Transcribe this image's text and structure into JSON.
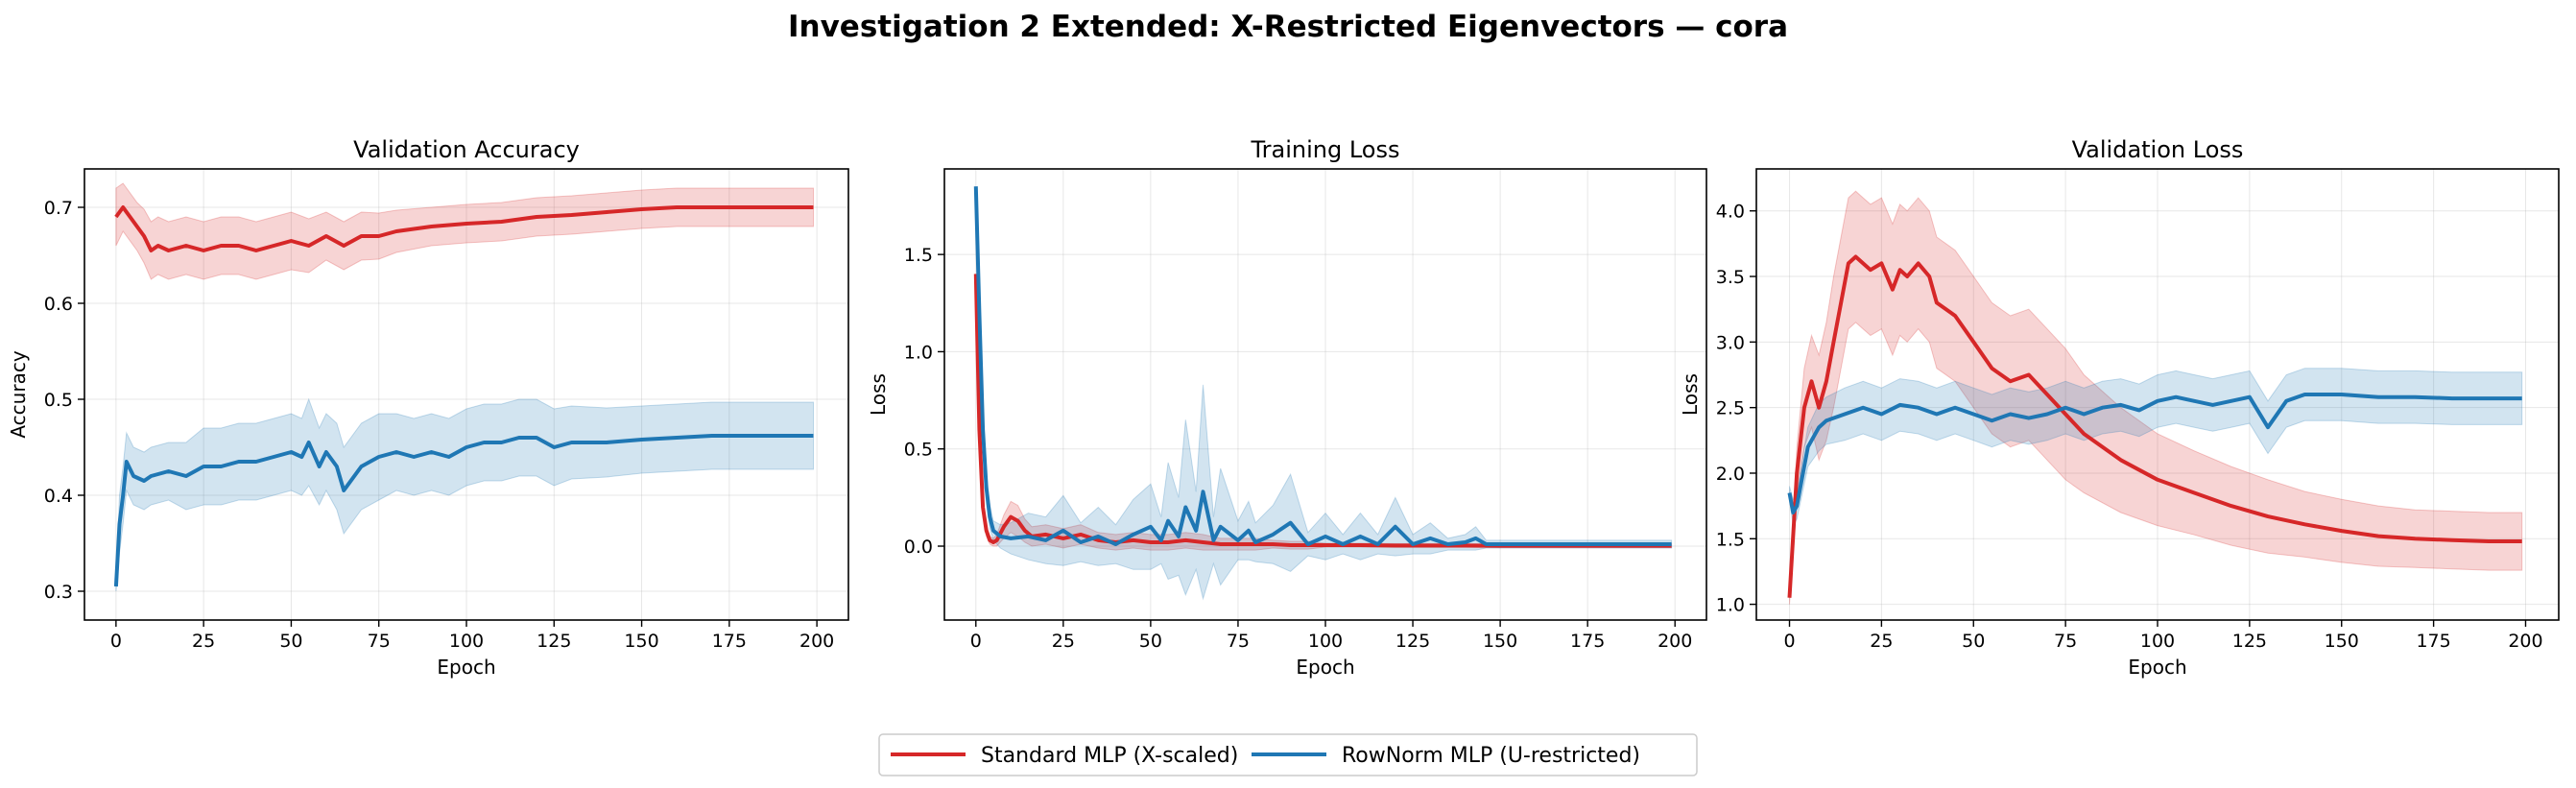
{
  "figure_title": "Investigation 2 Extended: X-Restricted Eigenvectors — cora",
  "colors": {
    "standard": "#d62728",
    "rownorm": "#1f77b4"
  },
  "legend": {
    "placement": "bottom-center",
    "entries": [
      {
        "label": "Standard MLP (X-scaled)",
        "color": "#d62728"
      },
      {
        "label": "RowNorm MLP (U-restricted)",
        "color": "#1f77b4"
      }
    ]
  },
  "chart_data": [
    {
      "type": "line",
      "title": "Validation Accuracy",
      "xlabel": "Epoch",
      "ylabel": "Accuracy",
      "xlim": [
        -9,
        209
      ],
      "ylim": [
        0.27,
        0.74
      ],
      "xticks": [
        0,
        25,
        50,
        75,
        100,
        125,
        150,
        175,
        200
      ],
      "yticks": [
        0.3,
        0.4,
        0.5,
        0.6,
        0.7
      ],
      "ytick_labels": [
        "0.3",
        "0.4",
        "0.5",
        "0.6",
        "0.7"
      ],
      "grid": true,
      "series": [
        {
          "name": "Standard MLP (X-scaled)",
          "color": "#d62728",
          "x": [
            0,
            2,
            4,
            6,
            8,
            10,
            12,
            15,
            20,
            25,
            30,
            35,
            40,
            45,
            50,
            55,
            60,
            65,
            70,
            75,
            80,
            90,
            100,
            110,
            120,
            130,
            140,
            150,
            160,
            170,
            180,
            190,
            199
          ],
          "y": [
            0.69,
            0.7,
            0.69,
            0.68,
            0.67,
            0.655,
            0.66,
            0.655,
            0.66,
            0.655,
            0.66,
            0.66,
            0.655,
            0.66,
            0.665,
            0.66,
            0.67,
            0.66,
            0.67,
            0.67,
            0.675,
            0.68,
            0.683,
            0.685,
            0.69,
            0.692,
            0.695,
            0.698,
            0.7,
            0.7,
            0.7,
            0.7,
            0.7
          ],
          "band": [
            0.03,
            0.025,
            0.025,
            0.025,
            0.028,
            0.03,
            0.03,
            0.03,
            0.03,
            0.03,
            0.03,
            0.03,
            0.03,
            0.03,
            0.03,
            0.028,
            0.025,
            0.025,
            0.025,
            0.024,
            0.022,
            0.02,
            0.02,
            0.02,
            0.02,
            0.02,
            0.02,
            0.02,
            0.02,
            0.02,
            0.02,
            0.02,
            0.02
          ]
        },
        {
          "name": "RowNorm MLP (U-restricted)",
          "color": "#1f77b4",
          "x": [
            0,
            1,
            2,
            3,
            5,
            8,
            10,
            15,
            20,
            25,
            30,
            35,
            40,
            45,
            50,
            53,
            55,
            58,
            60,
            63,
            65,
            70,
            75,
            80,
            85,
            90,
            95,
            100,
            105,
            110,
            115,
            120,
            125,
            130,
            140,
            150,
            160,
            170,
            180,
            190,
            199
          ],
          "y": [
            0.305,
            0.37,
            0.4,
            0.435,
            0.42,
            0.415,
            0.42,
            0.425,
            0.42,
            0.43,
            0.43,
            0.435,
            0.435,
            0.44,
            0.445,
            0.44,
            0.455,
            0.43,
            0.445,
            0.43,
            0.405,
            0.43,
            0.44,
            0.445,
            0.44,
            0.445,
            0.44,
            0.45,
            0.455,
            0.455,
            0.46,
            0.46,
            0.45,
            0.455,
            0.455,
            0.458,
            0.46,
            0.462,
            0.462,
            0.462,
            0.462
          ],
          "band": [
            0.005,
            0.03,
            0.03,
            0.03,
            0.03,
            0.03,
            0.03,
            0.03,
            0.035,
            0.04,
            0.04,
            0.04,
            0.04,
            0.04,
            0.04,
            0.04,
            0.045,
            0.04,
            0.04,
            0.045,
            0.045,
            0.045,
            0.045,
            0.04,
            0.04,
            0.04,
            0.04,
            0.04,
            0.04,
            0.04,
            0.04,
            0.04,
            0.04,
            0.038,
            0.036,
            0.035,
            0.035,
            0.035,
            0.035,
            0.035,
            0.035
          ]
        }
      ]
    },
    {
      "type": "line",
      "title": "Training Loss",
      "xlabel": "Epoch",
      "ylabel": "Loss",
      "xlim": [
        -9,
        209
      ],
      "ylim": [
        -0.38,
        1.94
      ],
      "xticks": [
        0,
        25,
        50,
        75,
        100,
        125,
        150,
        175,
        200
      ],
      "yticks": [
        0.0,
        0.5,
        1.0,
        1.5
      ],
      "ytick_labels": [
        "0.0",
        "0.5",
        "1.0",
        "1.5"
      ],
      "grid": true,
      "series": [
        {
          "name": "Standard MLP (X-scaled)",
          "color": "#d62728",
          "x": [
            0,
            1,
            2,
            3,
            4,
            5,
            6,
            8,
            10,
            12,
            14,
            16,
            20,
            25,
            30,
            35,
            40,
            45,
            50,
            55,
            60,
            65,
            70,
            75,
            80,
            85,
            90,
            95,
            100,
            110,
            120,
            130,
            140,
            150,
            170,
            199
          ],
          "y": [
            1.4,
            0.6,
            0.2,
            0.08,
            0.03,
            0.02,
            0.03,
            0.1,
            0.15,
            0.13,
            0.08,
            0.05,
            0.06,
            0.04,
            0.06,
            0.03,
            0.02,
            0.03,
            0.02,
            0.02,
            0.03,
            0.02,
            0.01,
            0.01,
            0.01,
            0.01,
            0.005,
            0.005,
            0.005,
            0.005,
            0.003,
            0.003,
            0.003,
            0.002,
            0.002,
            0.002
          ],
          "band": [
            0.0,
            0.1,
            0.05,
            0.03,
            0.02,
            0.02,
            0.03,
            0.06,
            0.08,
            0.08,
            0.06,
            0.05,
            0.05,
            0.05,
            0.05,
            0.04,
            0.04,
            0.04,
            0.04,
            0.04,
            0.04,
            0.04,
            0.03,
            0.03,
            0.03,
            0.02,
            0.02,
            0.02,
            0.01,
            0.01,
            0.01,
            0.01,
            0.01,
            0.01,
            0.01,
            0.01
          ]
        },
        {
          "name": "RowNorm MLP (U-restricted)",
          "color": "#1f77b4",
          "x": [
            0,
            1,
            2,
            3,
            4,
            5,
            7,
            10,
            15,
            20,
            25,
            30,
            35,
            40,
            45,
            50,
            53,
            55,
            58,
            60,
            63,
            65,
            68,
            70,
            75,
            78,
            80,
            85,
            90,
            95,
            100,
            105,
            110,
            115,
            120,
            125,
            130,
            135,
            140,
            143,
            146,
            150,
            175,
            199
          ],
          "y": [
            1.85,
            1.2,
            0.6,
            0.3,
            0.15,
            0.08,
            0.05,
            0.04,
            0.05,
            0.03,
            0.08,
            0.02,
            0.05,
            0.01,
            0.06,
            0.1,
            0.03,
            0.13,
            0.05,
            0.2,
            0.08,
            0.28,
            0.03,
            0.1,
            0.03,
            0.08,
            0.02,
            0.06,
            0.12,
            0.01,
            0.05,
            0.01,
            0.05,
            0.01,
            0.1,
            0.01,
            0.04,
            0.01,
            0.02,
            0.04,
            0.01,
            0.01,
            0.01,
            0.01
          ],
          "band": [
            0.0,
            0.15,
            0.1,
            0.08,
            0.06,
            0.05,
            0.06,
            0.08,
            0.12,
            0.12,
            0.18,
            0.1,
            0.15,
            0.1,
            0.18,
            0.22,
            0.12,
            0.3,
            0.2,
            0.45,
            0.2,
            0.55,
            0.12,
            0.3,
            0.1,
            0.15,
            0.1,
            0.15,
            0.25,
            0.06,
            0.12,
            0.05,
            0.12,
            0.05,
            0.15,
            0.05,
            0.08,
            0.03,
            0.04,
            0.06,
            0.02,
            0.02,
            0.02,
            0.02
          ]
        }
      ]
    },
    {
      "type": "line",
      "title": "Validation Loss",
      "xlabel": "Epoch",
      "ylabel": "Loss",
      "xlim": [
        -9,
        209
      ],
      "ylim": [
        0.88,
        4.32
      ],
      "xticks": [
        0,
        25,
        50,
        75,
        100,
        125,
        150,
        175,
        200
      ],
      "yticks": [
        1.0,
        1.5,
        2.0,
        2.5,
        3.0,
        3.5,
        4.0
      ],
      "ytick_labels": [
        "1.0",
        "1.5",
        "2.0",
        "2.5",
        "3.0",
        "3.5",
        "4.0"
      ],
      "grid": true,
      "series": [
        {
          "name": "Standard MLP (X-scaled)",
          "color": "#d62728",
          "x": [
            0,
            2,
            4,
            6,
            8,
            10,
            12,
            14,
            16,
            18,
            20,
            22,
            25,
            28,
            30,
            32,
            35,
            38,
            40,
            45,
            50,
            55,
            60,
            65,
            70,
            75,
            80,
            90,
            100,
            110,
            120,
            130,
            140,
            150,
            160,
            170,
            180,
            190,
            199
          ],
          "y": [
            1.05,
            2.0,
            2.5,
            2.7,
            2.5,
            2.7,
            3.0,
            3.3,
            3.6,
            3.65,
            3.6,
            3.55,
            3.6,
            3.4,
            3.55,
            3.5,
            3.6,
            3.5,
            3.3,
            3.2,
            3.0,
            2.8,
            2.7,
            2.75,
            2.6,
            2.45,
            2.3,
            2.1,
            1.95,
            1.85,
            1.75,
            1.67,
            1.61,
            1.56,
            1.52,
            1.5,
            1.49,
            1.48,
            1.48
          ],
          "band": [
            0.05,
            0.2,
            0.3,
            0.35,
            0.4,
            0.45,
            0.5,
            0.5,
            0.5,
            0.5,
            0.5,
            0.5,
            0.5,
            0.5,
            0.5,
            0.5,
            0.5,
            0.5,
            0.5,
            0.5,
            0.5,
            0.5,
            0.5,
            0.5,
            0.5,
            0.5,
            0.45,
            0.4,
            0.35,
            0.32,
            0.3,
            0.28,
            0.25,
            0.24,
            0.23,
            0.22,
            0.22,
            0.22,
            0.22
          ]
        },
        {
          "name": "RowNorm MLP (U-restricted)",
          "color": "#1f77b4",
          "x": [
            0,
            1,
            2,
            3,
            5,
            8,
            10,
            15,
            20,
            25,
            30,
            35,
            40,
            45,
            50,
            55,
            60,
            65,
            70,
            75,
            80,
            85,
            90,
            95,
            100,
            105,
            110,
            115,
            120,
            125,
            130,
            135,
            140,
            150,
            160,
            170,
            180,
            190,
            199
          ],
          "y": [
            1.85,
            1.7,
            1.75,
            1.9,
            2.2,
            2.35,
            2.4,
            2.45,
            2.5,
            2.45,
            2.52,
            2.5,
            2.45,
            2.5,
            2.45,
            2.4,
            2.45,
            2.42,
            2.45,
            2.5,
            2.45,
            2.5,
            2.52,
            2.48,
            2.55,
            2.58,
            2.55,
            2.52,
            2.55,
            2.58,
            2.35,
            2.55,
            2.6,
            2.6,
            2.58,
            2.58,
            2.57,
            2.57,
            2.57
          ],
          "band": [
            0.05,
            0.1,
            0.1,
            0.12,
            0.15,
            0.18,
            0.18,
            0.2,
            0.2,
            0.2,
            0.2,
            0.2,
            0.2,
            0.2,
            0.2,
            0.2,
            0.2,
            0.2,
            0.2,
            0.2,
            0.2,
            0.2,
            0.2,
            0.2,
            0.2,
            0.2,
            0.2,
            0.2,
            0.2,
            0.2,
            0.2,
            0.2,
            0.2,
            0.2,
            0.2,
            0.2,
            0.2,
            0.2,
            0.2
          ]
        }
      ]
    }
  ]
}
